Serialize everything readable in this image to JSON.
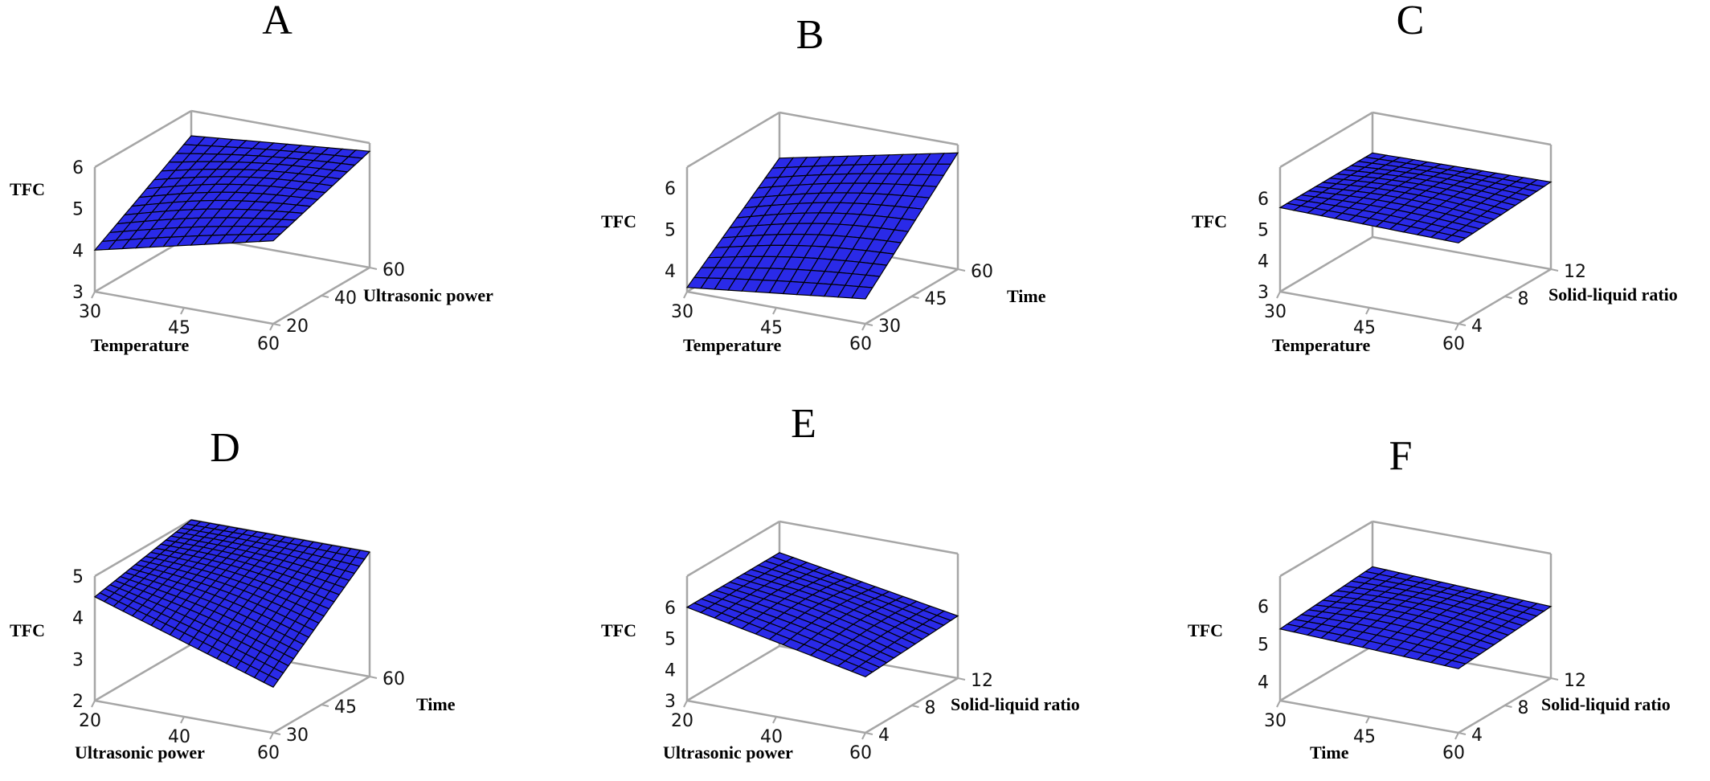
{
  "chart_data": [
    {
      "type": "surface3d",
      "panel": "A",
      "xlabel": "Temperature",
      "ylabel": "Ultrasonic power",
      "zlabel": "TFC",
      "xticks": [
        "30",
        "45",
        "60"
      ],
      "yticks": [
        "20",
        "40",
        "60"
      ],
      "zticks": [
        "3",
        "4",
        "5",
        "6"
      ],
      "xlim": [
        30,
        60
      ],
      "ylim": [
        20,
        60
      ],
      "zlim": [
        3,
        6
      ],
      "grid_x": [
        30,
        60
      ],
      "grid_y": [
        20,
        60
      ],
      "grid_res": 13,
      "surface_corners": {
        "x_min_y_min": 4.0,
        "x_max_y_min": 5.0,
        "x_min_y_max": 5.4,
        "x_max_y_max": 5.8
      }
    },
    {
      "type": "surface3d",
      "panel": "B",
      "xlabel": "Temperature",
      "ylabel": "Time",
      "zlabel": "TFC",
      "xticks": [
        "30",
        "45",
        "60"
      ],
      "yticks": [
        "30",
        "45",
        "60"
      ],
      "zticks": [
        "4",
        "5",
        "6"
      ],
      "xlim": [
        30,
        60
      ],
      "ylim": [
        30,
        60
      ],
      "zlim": [
        3.5,
        6.5
      ],
      "grid_x": [
        30,
        60
      ],
      "grid_y": [
        30,
        60
      ],
      "grid_res": 13,
      "surface_corners": {
        "x_min_y_min": 3.6,
        "x_max_y_min": 4.1,
        "x_min_y_max": 5.4,
        "x_max_y_max": 6.3
      }
    },
    {
      "type": "surface3d",
      "panel": "C",
      "xlabel": "Temperature",
      "ylabel": "Solid-liquid ratio",
      "zlabel": "TFC",
      "xticks": [
        "30",
        "45",
        "60"
      ],
      "yticks": [
        "4",
        "8",
        "12"
      ],
      "zticks": [
        "3",
        "4",
        "5",
        "6"
      ],
      "xlim": [
        30,
        60
      ],
      "ylim": [
        4,
        12
      ],
      "zlim": [
        3,
        7
      ],
      "grid_x": [
        30,
        60
      ],
      "grid_y": [
        4,
        12
      ],
      "grid_res": 13,
      "surface_corners": {
        "x_min_y_min": 5.7,
        "x_max_y_min": 5.6,
        "x_min_y_max": 5.7,
        "x_max_y_max": 5.8
      }
    },
    {
      "type": "surface3d",
      "panel": "D",
      "xlabel": "Ultrasonic power",
      "ylabel": "Time",
      "zlabel": "TFC",
      "xticks": [
        "20",
        "40",
        "60"
      ],
      "yticks": [
        "30",
        "45",
        "60"
      ],
      "zticks": [
        "2",
        "3",
        "4",
        "5"
      ],
      "xlim": [
        20,
        60
      ],
      "ylim": [
        30,
        60
      ],
      "zlim": [
        2,
        5
      ],
      "grid_x": [
        20,
        60
      ],
      "grid_y": [
        30,
        60
      ],
      "grid_res": 19,
      "surface_corners": {
        "x_min_y_min": 4.5,
        "x_max_y_min": 3.1,
        "x_min_y_max": 5.0,
        "x_max_y_max": 5.0
      }
    },
    {
      "type": "surface3d",
      "panel": "E",
      "xlabel": "Ultrasonic power",
      "ylabel": "Solid-liquid ratio",
      "zlabel": "TFC",
      "xticks": [
        "20",
        "40",
        "60"
      ],
      "yticks": [
        "4",
        "8",
        "12"
      ],
      "zticks": [
        "3",
        "4",
        "5",
        "6"
      ],
      "xlim": [
        20,
        60
      ],
      "ylim": [
        4,
        12
      ],
      "zlim": [
        3,
        7
      ],
      "grid_x": [
        20,
        60
      ],
      "grid_y": [
        4,
        12
      ],
      "grid_res": 13,
      "surface_corners": {
        "x_min_y_min": 6.0,
        "x_max_y_min": 4.8,
        "x_min_y_max": 6.0,
        "x_max_y_max": 5.0
      }
    },
    {
      "type": "surface3d",
      "panel": "F",
      "xlabel": "Time",
      "ylabel": "Solid-liquid ratio",
      "zlabel": "TFC",
      "xticks": [
        "30",
        "45",
        "60"
      ],
      "yticks": [
        "4",
        "8",
        "12"
      ],
      "zticks": [
        "4",
        "5",
        "6"
      ],
      "xlim": [
        30,
        60
      ],
      "ylim": [
        4,
        12
      ],
      "zlim": [
        3.5,
        6.8
      ],
      "grid_x": [
        30,
        60
      ],
      "grid_y": [
        4,
        12
      ],
      "grid_res": 13,
      "surface_corners": {
        "x_min_y_min": 5.4,
        "x_max_y_min": 5.2,
        "x_min_y_max": 5.6,
        "x_max_y_max": 5.4
      }
    }
  ]
}
